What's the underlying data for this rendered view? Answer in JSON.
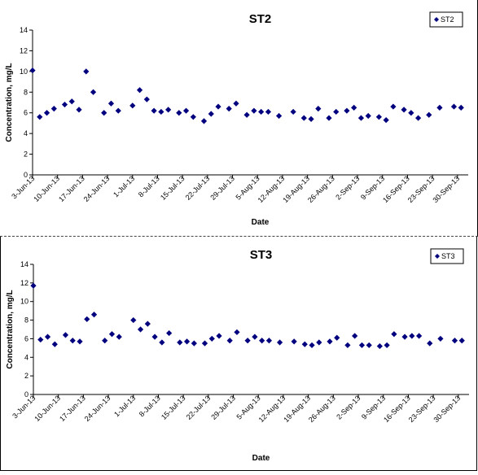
{
  "chart_data": [
    {
      "type": "scatter",
      "title": "ST2",
      "xlabel": "Date",
      "ylabel": "Concentration, mg/L",
      "ylim": [
        0,
        14
      ],
      "yticks": [
        0,
        2,
        4,
        6,
        8,
        10,
        12,
        14
      ],
      "grid": false,
      "legend_position": "top-right",
      "marker_color": "#00007f",
      "x_tick_labels": [
        "3-Jun-13",
        "10-Jun-13",
        "17-Jun-13",
        "24-Jun-13",
        "1-Jul-13",
        "8-Jul-13",
        "15-Jul-13",
        "22-Jul-13",
        "29-Jul-13",
        "5-Aug-13",
        "12-Aug-13",
        "19-Aug-13",
        "26-Aug-13",
        "2-Sep-13",
        "9-Sep-13",
        "16-Sep-13",
        "23-Sep-13",
        "30-Sep-13"
      ],
      "xlim": [
        "2013-06-03",
        "2013-10-03"
      ],
      "series": [
        {
          "name": "ST2",
          "x": [
            "2013-06-03",
            "2013-06-05",
            "2013-06-07",
            "2013-06-09",
            "2013-06-12",
            "2013-06-14",
            "2013-06-16",
            "2013-06-18",
            "2013-06-20",
            "2013-06-23",
            "2013-06-25",
            "2013-06-27",
            "2013-07-01",
            "2013-07-03",
            "2013-07-05",
            "2013-07-07",
            "2013-07-09",
            "2013-07-11",
            "2013-07-14",
            "2013-07-16",
            "2013-07-18",
            "2013-07-21",
            "2013-07-23",
            "2013-07-25",
            "2013-07-28",
            "2013-07-30",
            "2013-08-02",
            "2013-08-04",
            "2013-08-06",
            "2013-08-08",
            "2013-08-11",
            "2013-08-15",
            "2013-08-18",
            "2013-08-20",
            "2013-08-22",
            "2013-08-25",
            "2013-08-27",
            "2013-08-30",
            "2013-09-01",
            "2013-09-03",
            "2013-09-05",
            "2013-09-08",
            "2013-09-10",
            "2013-09-12",
            "2013-09-15",
            "2013-09-17",
            "2013-09-19",
            "2013-09-22",
            "2013-09-25",
            "2013-09-29",
            "2013-10-01"
          ],
          "y": [
            10.1,
            5.6,
            6.0,
            6.4,
            6.8,
            7.1,
            6.3,
            10.0,
            8.0,
            6.0,
            6.9,
            6.2,
            6.7,
            8.2,
            7.3,
            6.2,
            6.1,
            6.3,
            6.0,
            6.2,
            5.6,
            5.2,
            5.9,
            6.6,
            6.4,
            6.9,
            5.8,
            6.2,
            6.1,
            6.1,
            5.7,
            6.1,
            5.5,
            5.4,
            6.4,
            5.5,
            6.1,
            6.2,
            6.5,
            5.5,
            5.7,
            5.6,
            5.3,
            6.6,
            6.3,
            6.0,
            5.5,
            5.8,
            6.5,
            6.6,
            6.5
          ]
        }
      ]
    },
    {
      "type": "scatter",
      "title": "ST3",
      "xlabel": "Date",
      "ylabel": "Concentration, mg/L",
      "ylim": [
        0,
        14
      ],
      "yticks": [
        0,
        2,
        4,
        6,
        8,
        10,
        12,
        14
      ],
      "grid": false,
      "legend_position": "top-right",
      "marker_color": "#00007f",
      "x_tick_labels": [
        "3-Jun-13",
        "10-Jun-13",
        "17-Jun-13",
        "24-Jun-13",
        "1-Jul-13",
        "8-Jul-13",
        "15-Jul-13",
        "22-Jul-13",
        "29-Jul-13",
        "5-Aug-13",
        "12-Aug-13",
        "19-Aug-13",
        "26-Aug-13",
        "2-Sep-13",
        "9-Sep-13",
        "16-Sep-13",
        "23-Sep-13",
        "30-Sep-13"
      ],
      "xlim": [
        "2013-06-03",
        "2013-10-03"
      ],
      "series": [
        {
          "name": "ST3",
          "x": [
            "2013-06-03",
            "2013-06-05",
            "2013-06-07",
            "2013-06-09",
            "2013-06-12",
            "2013-06-14",
            "2013-06-16",
            "2013-06-18",
            "2013-06-20",
            "2013-06-23",
            "2013-06-25",
            "2013-06-27",
            "2013-07-01",
            "2013-07-03",
            "2013-07-05",
            "2013-07-07",
            "2013-07-09",
            "2013-07-11",
            "2013-07-14",
            "2013-07-16",
            "2013-07-18",
            "2013-07-21",
            "2013-07-23",
            "2013-07-25",
            "2013-07-28",
            "2013-07-30",
            "2013-08-02",
            "2013-08-04",
            "2013-08-06",
            "2013-08-08",
            "2013-08-11",
            "2013-08-15",
            "2013-08-18",
            "2013-08-20",
            "2013-08-22",
            "2013-08-25",
            "2013-08-27",
            "2013-08-30",
            "2013-09-01",
            "2013-09-03",
            "2013-09-05",
            "2013-09-08",
            "2013-09-10",
            "2013-09-12",
            "2013-09-15",
            "2013-09-17",
            "2013-09-19",
            "2013-09-22",
            "2013-09-25",
            "2013-09-29",
            "2013-10-01"
          ],
          "y": [
            11.7,
            5.9,
            6.2,
            5.4,
            6.4,
            5.8,
            5.7,
            8.1,
            8.6,
            5.8,
            6.5,
            6.2,
            8.0,
            7.0,
            7.6,
            6.2,
            5.6,
            6.6,
            5.6,
            5.7,
            5.5,
            5.5,
            6.0,
            6.3,
            5.8,
            6.7,
            5.8,
            6.2,
            5.8,
            5.8,
            5.6,
            5.7,
            5.4,
            5.3,
            5.6,
            5.7,
            6.1,
            5.3,
            6.3,
            5.3,
            5.3,
            5.2,
            5.3,
            6.5,
            6.2,
            6.3,
            6.3,
            5.5,
            6.0,
            5.8,
            5.8
          ]
        }
      ]
    }
  ]
}
